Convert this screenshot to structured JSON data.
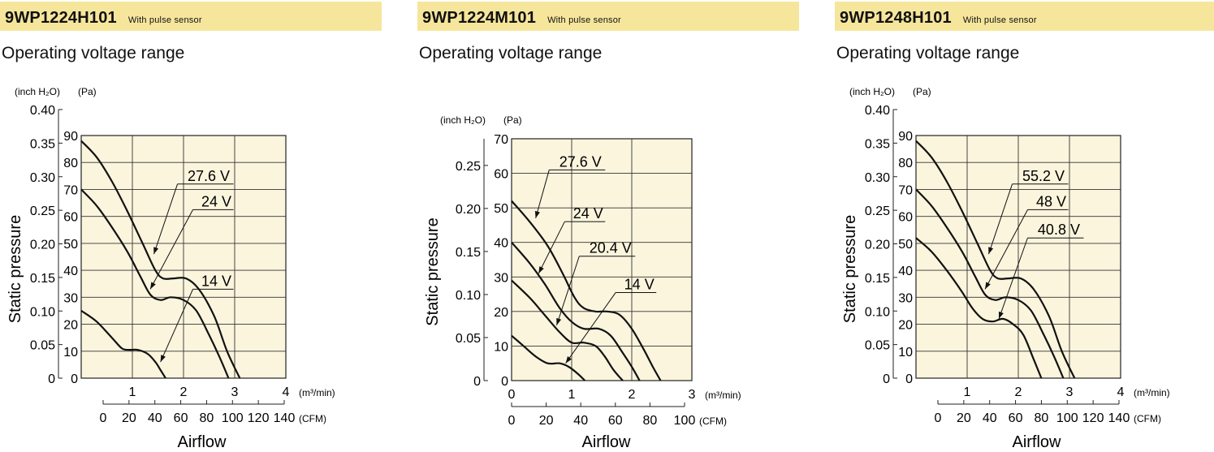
{
  "colors": {
    "header_band": "#f6e69c",
    "plot_background": "#fbf5dd",
    "curve": "#111111"
  },
  "chart_data": [
    {
      "type": "line",
      "header": "9WP1224H101",
      "header_note": "With pulse sensor",
      "title": "Operating voltage range",
      "xlabel": "Airflow",
      "ylabel": "Static pressure",
      "x_units": [
        "(m³/min)",
        "(CFM)"
      ],
      "y_units": [
        "(inch H₂O)",
        "(Pa)"
      ],
      "xlim": [
        0,
        4
      ],
      "ylim_pa": [
        0,
        90
      ],
      "x_ticks_m3min": [
        "1",
        "2",
        "3",
        "4"
      ],
      "x_ticks_cfm": [
        "0",
        "20",
        "40",
        "60",
        "80",
        "100",
        "120",
        "140"
      ],
      "y_ticks_pa": [
        "0",
        "10",
        "20",
        "30",
        "40",
        "50",
        "60",
        "70",
        "80",
        "90"
      ],
      "y_ticks_inch": [
        "0",
        "0.05",
        "0.10",
        "0.15",
        "0.20",
        "0.25",
        "0.30",
        "0.35",
        "0.40"
      ],
      "grid": true,
      "series": [
        {
          "name": "27.6 V",
          "x": [
            0,
            0.3,
            0.6,
            0.9,
            1.2,
            1.45,
            1.6,
            1.8,
            2.05,
            2.3,
            2.6,
            2.85,
            3.1
          ],
          "y": [
            88,
            82,
            73,
            62,
            50,
            40,
            37,
            37,
            37,
            33,
            23,
            10,
            0
          ]
        },
        {
          "name": "24 V",
          "x": [
            0,
            0.3,
            0.6,
            0.9,
            1.15,
            1.35,
            1.55,
            1.75,
            2.0,
            2.25,
            2.5,
            2.7,
            2.88
          ],
          "y": [
            70,
            64,
            56,
            47,
            38,
            31,
            29,
            30,
            29,
            25,
            16,
            8,
            0
          ]
        },
        {
          "name": "14 V",
          "x": [
            0,
            0.3,
            0.6,
            0.8,
            0.95,
            1.1,
            1.3,
            1.45,
            1.55,
            1.65
          ],
          "y": [
            25,
            21,
            15,
            11,
            10.5,
            10.5,
            9,
            6,
            3,
            0
          ]
        }
      ],
      "labels": [
        {
          "text": "27.6 V",
          "lx": 2.85,
          "ly": 72,
          "ax": 1.42,
          "ay": 46
        },
        {
          "text": "24 V",
          "lx": 2.85,
          "ly": 62.5,
          "ax": 1.35,
          "ay": 33
        },
        {
          "text": "14 V",
          "lx": 2.85,
          "ly": 33,
          "ax": 1.55,
          "ay": 6
        }
      ]
    },
    {
      "type": "line",
      "header": "9WP1224M101",
      "header_note": "With pulse sensor",
      "title": "Operating voltage range",
      "xlabel": "Airflow",
      "ylabel": "Static pressure",
      "x_units": [
        "(m³/min)",
        "(CFM)"
      ],
      "y_units": [
        "(inch H₂O)",
        "(Pa)"
      ],
      "xlim": [
        0,
        3
      ],
      "ylim_pa": [
        0,
        70
      ],
      "x_ticks_m3min": [
        "0",
        "1",
        "2",
        "3"
      ],
      "x_ticks_cfm": [
        "0",
        "20",
        "40",
        "60",
        "80",
        "100"
      ],
      "y_ticks_pa": [
        "0",
        "10",
        "20",
        "30",
        "40",
        "50",
        "60",
        "70"
      ],
      "y_ticks_inch": [
        "0",
        "0.05",
        "0.10",
        "0.15",
        "0.20",
        "0.25"
      ],
      "grid": true,
      "series": [
        {
          "name": "27.6 V",
          "x": [
            0,
            0.3,
            0.6,
            0.85,
            1.05,
            1.2,
            1.4,
            1.6,
            1.8,
            2.0,
            2.2,
            2.35,
            2.48
          ],
          "y": [
            52,
            46,
            39,
            31,
            24,
            21,
            20,
            20,
            19,
            15,
            9,
            4,
            0
          ]
        },
        {
          "name": "24 V",
          "x": [
            0,
            0.3,
            0.55,
            0.8,
            1.0,
            1.2,
            1.45,
            1.65,
            1.85,
            2.0,
            2.13
          ],
          "y": [
            40,
            34,
            28,
            21,
            17,
            15,
            15,
            13,
            8,
            4,
            0
          ]
        },
        {
          "name": "20.4 V",
          "x": [
            0,
            0.3,
            0.55,
            0.8,
            1.0,
            1.2,
            1.4,
            1.55,
            1.7,
            1.85
          ],
          "y": [
            29,
            24,
            19,
            14,
            11,
            11,
            10,
            7,
            3,
            0
          ]
        },
        {
          "name": "14 V",
          "x": [
            0,
            0.2,
            0.4,
            0.6,
            0.8,
            0.95,
            1.1,
            1.22
          ],
          "y": [
            13,
            10,
            7,
            5,
            5,
            4,
            2,
            0
          ]
        }
      ],
      "labels": [
        {
          "text": "27.6 V",
          "lx": 1.45,
          "ly": 61,
          "ax": 0.4,
          "ay": 47
        },
        {
          "text": "24 V",
          "lx": 1.45,
          "ly": 46,
          "ax": 0.45,
          "ay": 31
        },
        {
          "text": "20.4 V",
          "lx": 1.95,
          "ly": 36,
          "ax": 0.75,
          "ay": 16
        },
        {
          "text": "14 V",
          "lx": 2.3,
          "ly": 25.5,
          "ax": 0.9,
          "ay": 5
        }
      ]
    },
    {
      "type": "line",
      "header": "9WP1248H101",
      "header_note": "With pulse sensor",
      "title": "Operating voltage range",
      "xlabel": "Airflow",
      "ylabel": "Static pressure",
      "x_units": [
        "(m³/min)",
        "(CFM)"
      ],
      "y_units": [
        "(inch H₂O)",
        "(Pa)"
      ],
      "xlim": [
        0,
        4
      ],
      "ylim_pa": [
        0,
        90
      ],
      "x_ticks_m3min": [
        "1",
        "2",
        "3",
        "4"
      ],
      "x_ticks_cfm": [
        "0",
        "20",
        "40",
        "60",
        "80",
        "100",
        "120",
        "140"
      ],
      "y_ticks_pa": [
        "0",
        "10",
        "20",
        "30",
        "40",
        "50",
        "60",
        "70",
        "80",
        "90"
      ],
      "y_ticks_inch": [
        "0",
        "0.05",
        "0.10",
        "0.15",
        "0.20",
        "0.25",
        "0.30",
        "0.35",
        "0.40"
      ],
      "grid": true,
      "series": [
        {
          "name": "55.2 V",
          "x": [
            0,
            0.3,
            0.6,
            0.9,
            1.2,
            1.45,
            1.6,
            1.8,
            2.05,
            2.3,
            2.6,
            2.85,
            3.1
          ],
          "y": [
            88,
            82,
            73,
            62,
            50,
            40,
            37,
            37,
            37,
            33,
            23,
            10,
            0
          ]
        },
        {
          "name": "48 V",
          "x": [
            0,
            0.3,
            0.6,
            0.9,
            1.15,
            1.35,
            1.55,
            1.75,
            2.0,
            2.25,
            2.5,
            2.7,
            2.88
          ],
          "y": [
            70,
            64,
            56,
            47,
            38,
            31,
            29,
            30,
            29,
            25,
            16,
            8,
            0
          ]
        },
        {
          "name": "40.8 V",
          "x": [
            0,
            0.3,
            0.6,
            0.9,
            1.1,
            1.3,
            1.5,
            1.7,
            1.9,
            2.1,
            2.3,
            2.45
          ],
          "y": [
            52,
            47,
            40,
            32,
            26,
            22,
            21,
            22,
            20,
            16,
            7,
            0
          ]
        }
      ],
      "labels": [
        {
          "text": "55.2 V",
          "lx": 2.85,
          "ly": 72,
          "ax": 1.42,
          "ay": 46
        },
        {
          "text": "48 V",
          "lx": 2.85,
          "ly": 62.5,
          "ax": 1.35,
          "ay": 33
        },
        {
          "text": "40.8 V",
          "lx": 3.15,
          "ly": 52,
          "ax": 1.62,
          "ay": 22
        }
      ]
    }
  ]
}
